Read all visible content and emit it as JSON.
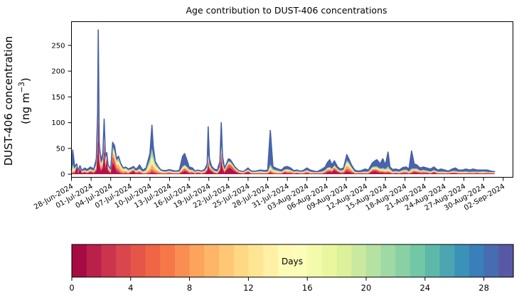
{
  "figure": {
    "title": "Age contribution to DUST-406 concentrations",
    "background": "#ffffff"
  },
  "y_axis": {
    "label_line1": "DUST-406 concentration",
    "label_line2_pre": "(ng m",
    "label_sup": "−3",
    "label_line2_post": ")",
    "ticks": [
      0,
      50,
      100,
      150,
      200,
      250
    ]
  },
  "x_axis": {
    "tick_labels": [
      "28-Jun-2024",
      "01-Jul-2024",
      "04-Jul-2024",
      "07-Jul-2024",
      "10-Jul-2024",
      "13-Jul-2024",
      "16-Jul-2024",
      "19-Jul-2024",
      "22-Jul-2024",
      "25-Jul-2024",
      "28-Jul-2024",
      "31-Jul-2024",
      "03-Aug-2024",
      "06-Aug-2024",
      "09-Aug-2024",
      "12-Aug-2024",
      "15-Aug-2024",
      "18-Aug-2024",
      "21-Aug-2024",
      "24-Aug-2024",
      "27-Aug-2024",
      "30-Aug-2024",
      "02-Sep-2024"
    ],
    "tick_step_days": 3
  },
  "colorbar": {
    "label": "Days",
    "ticks": [
      0,
      4,
      8,
      12,
      16,
      20,
      24,
      28
    ],
    "vmin": 0,
    "vmax": 30,
    "n_segments": 30,
    "cmap_anchors": [
      "#9e0142",
      "#d53e4f",
      "#f46d43",
      "#fdae61",
      "#fee08b",
      "#ffffbf",
      "#e6f598",
      "#abdda4",
      "#66c2a5",
      "#3288bd",
      "#5e4fa2"
    ]
  },
  "chart_data": {
    "type": "area",
    "subtype": "stacked-age-bins",
    "title": "Age contribution to DUST-406 concentrations",
    "xlabel": "",
    "ylabel": "DUST-406 concentration (ng m⁻³)",
    "x_unit": "days since 28-Jun-2024",
    "xlim": [
      0,
      67.5
    ],
    "ylim": [
      -6,
      296
    ],
    "grid": false,
    "legend": "colorbar (Days, 0-30)",
    "outline_color": "#4660a9",
    "bands": [
      {
        "name": "0-3 days",
        "color": "#b2114c"
      },
      {
        "name": "3-7 days",
        "color": "#e65949"
      },
      {
        "name": "7-12 days",
        "color": "#fdac60"
      },
      {
        "name": "12-18 days",
        "color": "#feec9f"
      },
      {
        "name": "18-24 days",
        "color": "#9ed7a4"
      },
      {
        "name": "24-30 days",
        "color": "#4a63ad"
      }
    ],
    "points_format": [
      "day_offset",
      "total",
      "band0",
      "band1",
      "band2",
      "band3",
      "band4"
    ],
    "points": [
      [
        0.0,
        8,
        1,
        1,
        1,
        1,
        1
      ],
      [
        0.2,
        47,
        2,
        2,
        3,
        6,
        6
      ],
      [
        0.5,
        14,
        2,
        2,
        2,
        3,
        2
      ],
      [
        0.8,
        20,
        14,
        2,
        1,
        1,
        1
      ],
      [
        1.0,
        6,
        2,
        1,
        1,
        1,
        1
      ],
      [
        1.3,
        16,
        10,
        3,
        1,
        1,
        1
      ],
      [
        1.6,
        7,
        2,
        1,
        1,
        1,
        1
      ],
      [
        2.0,
        12,
        3,
        2,
        1,
        1,
        1
      ],
      [
        2.4,
        9,
        2,
        1,
        1,
        1,
        1
      ],
      [
        2.9,
        14,
        4,
        2,
        2,
        1,
        1
      ],
      [
        3.4,
        10,
        2,
        2,
        1,
        1,
        1
      ],
      [
        3.8,
        30,
        6,
        4,
        3,
        4,
        3
      ],
      [
        4.0,
        120,
        40,
        15,
        10,
        10,
        8
      ],
      [
        4.1,
        280,
        110,
        25,
        18,
        12,
        8
      ],
      [
        4.25,
        60,
        20,
        8,
        6,
        6,
        4
      ],
      [
        4.5,
        28,
        6,
        4,
        4,
        4,
        3
      ],
      [
        4.8,
        40,
        12,
        6,
        5,
        4,
        3
      ],
      [
        5.0,
        107,
        50,
        12,
        8,
        6,
        4
      ],
      [
        5.2,
        35,
        10,
        6,
        5,
        4,
        3
      ],
      [
        5.4,
        42,
        30,
        4,
        3,
        2,
        1
      ],
      [
        5.6,
        18,
        6,
        3,
        3,
        2,
        2
      ],
      [
        6.0,
        10,
        2,
        2,
        2,
        1,
        1
      ],
      [
        6.3,
        62,
        24,
        12,
        8,
        6,
        4
      ],
      [
        6.6,
        55,
        16,
        10,
        8,
        6,
        5
      ],
      [
        6.9,
        30,
        6,
        6,
        6,
        5,
        4
      ],
      [
        7.2,
        35,
        4,
        6,
        8,
        8,
        5
      ],
      [
        7.5,
        22,
        2,
        3,
        6,
        6,
        3
      ],
      [
        7.9,
        12,
        1,
        2,
        3,
        3,
        2
      ],
      [
        8.3,
        14,
        2,
        2,
        3,
        3,
        2
      ],
      [
        8.7,
        10,
        1,
        1,
        2,
        2,
        2
      ],
      [
        9.2,
        13,
        4,
        2,
        2,
        1,
        1
      ],
      [
        9.5,
        15,
        6,
        2,
        2,
        1,
        1
      ],
      [
        9.8,
        10,
        2,
        2,
        1,
        1,
        1
      ],
      [
        10.1,
        12,
        2,
        2,
        2,
        1,
        1
      ],
      [
        10.4,
        18,
        3,
        2,
        2,
        2,
        2
      ],
      [
        10.9,
        8,
        1,
        1,
        1,
        1,
        1
      ],
      [
        11.4,
        12,
        1,
        1,
        2,
        2,
        2
      ],
      [
        12.0,
        40,
        2,
        3,
        6,
        10,
        8
      ],
      [
        12.3,
        95,
        4,
        6,
        10,
        16,
        14
      ],
      [
        12.5,
        55,
        3,
        4,
        8,
        12,
        10
      ],
      [
        12.8,
        25,
        2,
        3,
        5,
        6,
        5
      ],
      [
        13.3,
        14,
        1,
        2,
        3,
        4,
        3
      ],
      [
        13.7,
        8,
        1,
        1,
        2,
        2,
        1
      ],
      [
        14.3,
        7,
        1,
        1,
        1,
        1,
        1
      ],
      [
        15.0,
        9,
        1,
        2,
        2,
        1,
        1
      ],
      [
        15.5,
        7,
        1,
        1,
        1,
        1,
        1
      ],
      [
        16.1,
        6,
        1,
        1,
        1,
        1,
        1
      ],
      [
        16.5,
        8,
        1,
        1,
        1,
        1,
        1
      ],
      [
        17.0,
        35,
        4,
        3,
        3,
        3,
        2
      ],
      [
        17.3,
        40,
        6,
        4,
        3,
        3,
        2
      ],
      [
        17.7,
        26,
        4,
        3,
        3,
        2,
        2
      ],
      [
        18.0,
        14,
        2,
        2,
        2,
        2,
        1
      ],
      [
        18.5,
        12,
        2,
        2,
        2,
        1,
        1
      ],
      [
        18.9,
        6,
        1,
        1,
        1,
        1,
        1
      ],
      [
        19.3,
        8,
        2,
        2,
        1,
        1,
        1
      ],
      [
        19.9,
        6,
        1,
        1,
        1,
        1,
        1
      ],
      [
        20.4,
        10,
        2,
        2,
        1,
        1,
        1
      ],
      [
        20.75,
        20,
        6,
        3,
        2,
        2,
        1
      ],
      [
        20.9,
        92,
        18,
        8,
        5,
        4,
        3
      ],
      [
        21.1,
        30,
        8,
        4,
        3,
        2,
        2
      ],
      [
        21.4,
        16,
        5,
        3,
        2,
        1,
        1
      ],
      [
        21.8,
        10,
        2,
        2,
        1,
        1,
        1
      ],
      [
        22.3,
        8,
        1,
        1,
        1,
        1,
        1
      ],
      [
        22.7,
        25,
        6,
        3,
        2,
        2,
        2
      ],
      [
        22.9,
        100,
        30,
        12,
        6,
        4,
        3
      ],
      [
        23.1,
        35,
        10,
        5,
        3,
        2,
        2
      ],
      [
        23.4,
        12,
        3,
        2,
        2,
        1,
        1
      ],
      [
        23.7,
        20,
        8,
        4,
        2,
        2,
        1
      ],
      [
        24.0,
        30,
        12,
        6,
        3,
        2,
        2
      ],
      [
        24.3,
        28,
        12,
        6,
        3,
        2,
        1
      ],
      [
        24.6,
        22,
        9,
        5,
        2,
        2,
        1
      ],
      [
        25.0,
        14,
        5,
        3,
        2,
        1,
        1
      ],
      [
        25.6,
        7,
        2,
        1,
        1,
        1,
        1
      ],
      [
        26.3,
        5,
        1,
        1,
        1,
        1,
        0.5
      ],
      [
        27.0,
        12,
        4,
        2,
        1,
        1,
        1
      ],
      [
        27.5,
        6,
        1,
        1,
        1,
        1,
        1
      ],
      [
        28.2,
        6,
        1,
        1,
        1,
        1,
        1
      ],
      [
        28.9,
        8,
        1,
        1,
        2,
        1,
        1
      ],
      [
        29.5,
        7,
        1,
        1,
        1,
        1,
        1
      ],
      [
        30.0,
        8,
        1,
        1,
        1,
        1,
        1
      ],
      [
        30.4,
        85,
        3,
        3,
        3,
        4,
        6
      ],
      [
        30.8,
        15,
        1,
        2,
        2,
        2,
        3
      ],
      [
        31.2,
        12,
        1,
        1,
        2,
        2,
        2
      ],
      [
        31.6,
        10,
        1,
        1,
        1,
        2,
        2
      ],
      [
        32.1,
        8,
        1,
        1,
        1,
        1,
        1
      ],
      [
        32.6,
        14,
        3,
        2,
        2,
        1,
        1
      ],
      [
        33.0,
        15,
        2,
        2,
        2,
        2,
        2
      ],
      [
        33.5,
        12,
        2,
        2,
        2,
        1,
        1
      ],
      [
        34.0,
        7,
        1,
        1,
        1,
        1,
        1
      ],
      [
        34.5,
        8,
        2,
        1,
        1,
        1,
        1
      ],
      [
        34.9,
        6,
        1,
        1,
        1,
        1,
        1
      ],
      [
        35.4,
        7,
        1,
        1,
        1,
        1,
        1
      ],
      [
        36.0,
        12,
        2,
        2,
        2,
        1,
        1
      ],
      [
        36.5,
        8,
        1,
        1,
        1,
        1,
        1
      ],
      [
        37.1,
        6,
        1,
        1,
        1,
        0.5,
        0.5
      ],
      [
        37.6,
        5,
        1,
        1,
        1,
        0.5,
        0.5
      ],
      [
        38.3,
        10,
        1,
        1,
        1,
        1,
        1
      ],
      [
        38.8,
        14,
        2,
        2,
        2,
        1,
        1
      ],
      [
        39.1,
        22,
        4,
        3,
        2,
        2,
        1
      ],
      [
        39.5,
        28,
        5,
        3,
        2,
        2,
        2
      ],
      [
        39.8,
        18,
        4,
        2,
        2,
        1,
        1
      ],
      [
        40.2,
        26,
        8,
        4,
        2,
        2,
        1
      ],
      [
        40.7,
        14,
        4,
        2,
        2,
        1,
        1
      ],
      [
        41.1,
        10,
        2,
        2,
        1,
        1,
        1
      ],
      [
        41.6,
        12,
        2,
        2,
        2,
        1,
        1
      ],
      [
        42.1,
        38,
        6,
        5,
        6,
        6,
        4
      ],
      [
        42.4,
        30,
        5,
        4,
        5,
        5,
        4
      ],
      [
        42.8,
        18,
        3,
        3,
        3,
        3,
        2
      ],
      [
        43.3,
        8,
        1,
        1,
        1,
        1,
        1
      ],
      [
        43.8,
        6,
        1,
        1,
        1,
        0.5,
        0.5
      ],
      [
        44.3,
        7,
        1,
        1.5,
        1,
        0.5,
        0.5
      ],
      [
        44.9,
        10,
        1,
        1,
        1,
        1,
        1
      ],
      [
        45.4,
        8,
        1,
        1,
        1,
        1,
        1
      ],
      [
        46.0,
        22,
        5,
        3,
        2,
        2,
        2
      ],
      [
        46.4,
        26,
        6,
        3,
        2,
        2,
        2
      ],
      [
        46.7,
        28,
        5,
        3,
        2,
        2,
        3
      ],
      [
        47.2,
        20,
        3,
        2,
        2,
        2,
        2
      ],
      [
        47.6,
        30,
        3,
        2,
        2,
        2,
        3
      ],
      [
        48.0,
        18,
        2,
        2,
        2,
        2,
        2
      ],
      [
        48.4,
        43,
        3,
        2,
        2,
        3,
        5
      ],
      [
        48.7,
        14,
        2,
        2,
        2,
        2,
        2
      ],
      [
        49.1,
        9,
        1,
        1,
        1,
        1,
        1
      ],
      [
        49.6,
        10,
        2,
        1,
        1,
        1,
        1
      ],
      [
        50.1,
        8,
        1,
        1,
        1,
        1,
        1
      ],
      [
        50.7,
        13,
        2,
        2,
        1,
        1,
        2
      ],
      [
        51.2,
        14,
        2,
        2,
        2,
        1,
        2
      ],
      [
        51.6,
        10,
        1,
        1,
        1,
        1,
        1
      ],
      [
        52.0,
        45,
        2,
        2,
        2,
        2,
        3
      ],
      [
        52.4,
        20,
        4,
        2,
        2,
        1,
        2
      ],
      [
        52.8,
        18,
        3,
        2,
        2,
        2,
        2
      ],
      [
        53.3,
        12,
        2,
        2,
        1,
        1,
        1
      ],
      [
        53.8,
        14,
        2,
        2,
        2,
        1,
        1
      ],
      [
        54.3,
        12,
        2,
        2,
        1,
        1,
        1
      ],
      [
        54.9,
        10,
        1,
        1,
        1,
        1,
        1
      ],
      [
        55.4,
        14,
        3,
        2,
        1,
        1,
        1
      ],
      [
        56.0,
        8,
        1,
        1,
        1,
        1,
        1
      ],
      [
        56.5,
        10,
        1,
        1,
        1,
        1,
        1
      ],
      [
        57.1,
        8,
        1,
        1,
        1,
        1,
        1
      ],
      [
        57.6,
        6,
        1,
        1,
        1,
        0.5,
        0.5
      ],
      [
        58.2,
        10,
        2,
        1,
        1,
        1,
        1
      ],
      [
        58.7,
        12,
        2,
        1,
        1,
        1,
        1
      ],
      [
        59.2,
        8,
        1,
        1,
        1.5,
        1,
        0.5
      ],
      [
        59.8,
        8,
        1,
        1,
        1,
        1,
        1
      ],
      [
        60.3,
        10,
        1,
        1,
        1,
        1,
        1.5
      ],
      [
        60.9,
        8,
        1,
        1.5,
        1,
        0.5,
        0.5
      ],
      [
        61.4,
        10,
        1,
        1,
        1,
        1,
        1
      ],
      [
        62.0,
        8,
        1.5,
        1.5,
        1,
        0.5,
        0.5
      ],
      [
        62.5,
        8,
        1,
        1,
        1,
        1,
        1
      ],
      [
        63.0,
        8,
        1,
        1,
        1,
        1,
        1.5
      ],
      [
        63.6,
        8,
        1,
        1.5,
        1,
        0.5,
        0.5
      ],
      [
        64.1,
        6,
        1,
        1,
        1,
        0.5,
        0.5
      ],
      [
        64.7,
        5,
        1,
        1,
        1,
        0.5,
        0.5
      ]
    ]
  }
}
